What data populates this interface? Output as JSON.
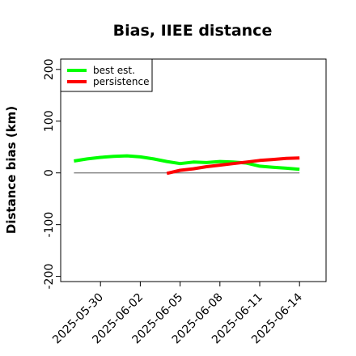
{
  "chart_data": {
    "type": "line",
    "title": "Bias, IIEE distance",
    "xlabel": "",
    "ylabel": "Distance bias (km)",
    "xlim": [
      "2025-05-27",
      "2025-06-16"
    ],
    "ylim": [
      -210,
      220
    ],
    "yticks": [
      -200,
      -100,
      0,
      100,
      200
    ],
    "xticks": [
      "2025-05-30",
      "2025-06-02",
      "2025-06-05",
      "2025-06-08",
      "2025-06-11",
      "2025-06-14"
    ],
    "legend_position": "top-left",
    "grid": false,
    "reference_line": {
      "y": 0,
      "color": "#808080",
      "x_from": "2025-05-28",
      "x_to": "2025-06-14"
    },
    "series": [
      {
        "name": "best est.",
        "color": "#00ff00",
        "x": [
          "2025-05-28",
          "2025-05-29",
          "2025-05-30",
          "2025-05-31",
          "2025-06-01",
          "2025-06-02",
          "2025-06-03",
          "2025-06-04",
          "2025-06-05",
          "2025-06-06",
          "2025-06-07",
          "2025-06-08",
          "2025-06-09",
          "2025-06-10",
          "2025-06-11",
          "2025-06-12",
          "2025-06-13",
          "2025-06-14"
        ],
        "values": [
          23,
          27,
          30,
          32,
          33,
          31,
          27,
          22,
          18,
          21,
          20,
          22,
          21,
          19,
          13,
          11,
          9,
          7
        ]
      },
      {
        "name": "persistence",
        "color": "#ff0000",
        "x": [
          "2025-06-04",
          "2025-06-05",
          "2025-06-06",
          "2025-06-07",
          "2025-06-08",
          "2025-06-09",
          "2025-06-10",
          "2025-06-11",
          "2025-06-12",
          "2025-06-13",
          "2025-06-14"
        ],
        "values": [
          -1,
          5,
          8,
          12,
          15,
          18,
          21,
          24,
          26,
          28,
          29
        ]
      }
    ]
  }
}
